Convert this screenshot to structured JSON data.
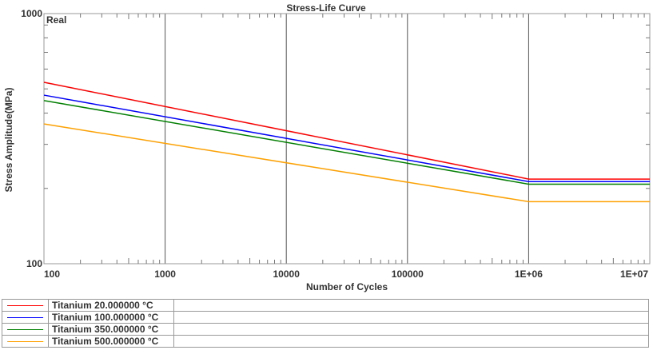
{
  "chart_data": {
    "type": "line",
    "title": "Stress-Life Curve",
    "xlabel": "Number of Cycles",
    "ylabel": "Stress Amplitude(MPa)",
    "annotation": "Real",
    "x_scale": "log",
    "y_scale": "log",
    "xlim": [
      100,
      10000000
    ],
    "ylim": [
      100,
      1000
    ],
    "x_ticks": [
      "100",
      "1000",
      "10000",
      "100000",
      "1E+06",
      "1E+07"
    ],
    "y_ticks": [
      "100",
      "1000"
    ],
    "grid": "vertical major",
    "legend_placement": "bottom",
    "series": [
      {
        "name": "Titanium 20.000000 °C",
        "color": "#ff0000",
        "x": [
          100,
          1000000,
          10000000
        ],
        "y": [
          531,
          218,
          218
        ]
      },
      {
        "name": "Titanium 100.000000 °C",
        "color": "#0000ff",
        "x": [
          100,
          1000000,
          10000000
        ],
        "y": [
          472,
          213,
          213
        ]
      },
      {
        "name": "Titanium 350.000000 °C",
        "color": "#008000",
        "x": [
          100,
          1000000,
          10000000
        ],
        "y": [
          449,
          208,
          208
        ]
      },
      {
        "name": "Titanium 500.000000 °C",
        "color": "#ffa000",
        "x": [
          100,
          1000000,
          10000000
        ],
        "y": [
          362,
          177,
          177
        ]
      }
    ]
  }
}
